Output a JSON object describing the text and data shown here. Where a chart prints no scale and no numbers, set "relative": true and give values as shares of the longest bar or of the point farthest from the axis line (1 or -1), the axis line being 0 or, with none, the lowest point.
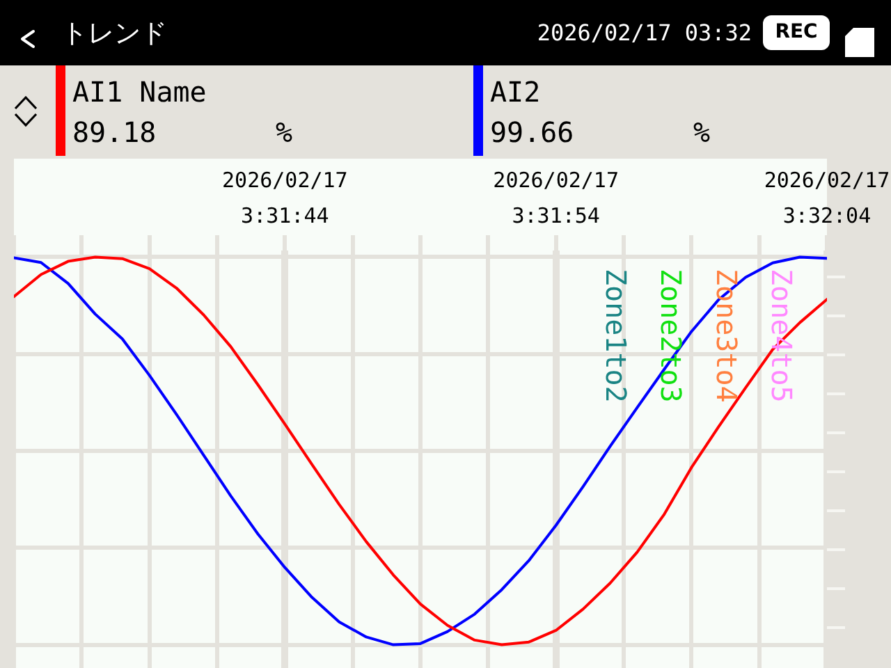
{
  "chart_data": {
    "type": "line",
    "title": "トレンド",
    "ylabel": "%",
    "relative": true,
    "annotations": [
      "2026/02/17 03:32",
      "REC",
      "89.18",
      "99.66",
      "Zone1to2",
      "Zone2to3",
      "Zone3to4",
      "Zone4to5"
    ],
    "x": [
      "2026-02-17T03:31:34",
      "2026-02-17T03:31:35",
      "2026-02-17T03:31:36",
      "2026-02-17T03:31:37",
      "2026-02-17T03:31:38",
      "2026-02-17T03:31:39",
      "2026-02-17T03:31:40",
      "2026-02-17T03:31:41",
      "2026-02-17T03:31:42",
      "2026-02-17T03:31:43",
      "2026-02-17T03:31:44",
      "2026-02-17T03:31:45",
      "2026-02-17T03:31:46",
      "2026-02-17T03:31:47",
      "2026-02-17T03:31:48",
      "2026-02-17T03:31:49",
      "2026-02-17T03:31:50",
      "2026-02-17T03:31:51",
      "2026-02-17T03:31:52",
      "2026-02-17T03:31:53",
      "2026-02-17T03:31:54",
      "2026-02-17T03:31:55",
      "2026-02-17T03:31:56",
      "2026-02-17T03:31:57",
      "2026-02-17T03:31:58",
      "2026-02-17T03:31:59",
      "2026-02-17T03:32:00",
      "2026-02-17T03:32:01",
      "2026-02-17T03:32:02",
      "2026-02-17T03:32:03",
      "2026-02-17T03:32:04"
    ],
    "series": [
      {
        "name": "AI1 Name",
        "color": "#ff0000",
        "values": [
          0.898,
          0.955,
          0.989,
          1.0,
          0.996,
          0.97,
          0.92,
          0.851,
          0.769,
          0.671,
          0.569,
          0.465,
          0.362,
          0.266,
          0.18,
          0.105,
          0.05,
          0.012,
          0.0,
          0.007,
          0.037,
          0.092,
          0.159,
          0.239,
          0.337,
          0.457,
          0.562,
          0.663,
          0.762,
          0.831,
          0.891
        ]
      },
      {
        "name": "AI2",
        "color": "#0000ff",
        "values": [
          0.998,
          0.986,
          0.932,
          0.853,
          0.789,
          0.695,
          0.594,
          0.489,
          0.384,
          0.286,
          0.199,
          0.122,
          0.059,
          0.02,
          0.0,
          0.003,
          0.034,
          0.079,
          0.142,
          0.217,
          0.308,
          0.408,
          0.512,
          0.612,
          0.711,
          0.808,
          0.89,
          0.948,
          0.985,
          1.0,
          0.997
        ]
      }
    ],
    "xlim": [
      "2026-02-17T03:31:34",
      "2026-02-17T03:32:04"
    ],
    "xticks": [
      {
        "value": "2026-02-17T03:31:34",
        "label": null
      },
      {
        "value": "2026-02-17T03:31:36.500",
        "label": null
      },
      {
        "value": "2026-02-17T03:31:39",
        "label": null
      },
      {
        "value": "2026-02-17T03:31:41.500",
        "label": null
      },
      {
        "value": "2026-02-17T03:31:44",
        "label": "2026/02/17 3:31:44"
      },
      {
        "value": "2026-02-17T03:31:46.500",
        "label": null
      },
      {
        "value": "2026-02-17T03:31:49",
        "label": null
      },
      {
        "value": "2026-02-17T03:31:51.500",
        "label": null
      },
      {
        "value": "2026-02-17T03:31:54",
        "label": "2026/02/17 3:31:54"
      },
      {
        "value": "2026-02-17T03:31:56.500",
        "label": null
      },
      {
        "value": "2026-02-17T03:31:59",
        "label": null
      },
      {
        "value": "2026-02-17T03:32:01.500",
        "label": null
      },
      {
        "value": "2026-02-17T03:32:04",
        "label": "2026/02/17 3:32:04"
      }
    ],
    "tick_labels": "x",
    "grid": true,
    "legend": "top"
  }
}
